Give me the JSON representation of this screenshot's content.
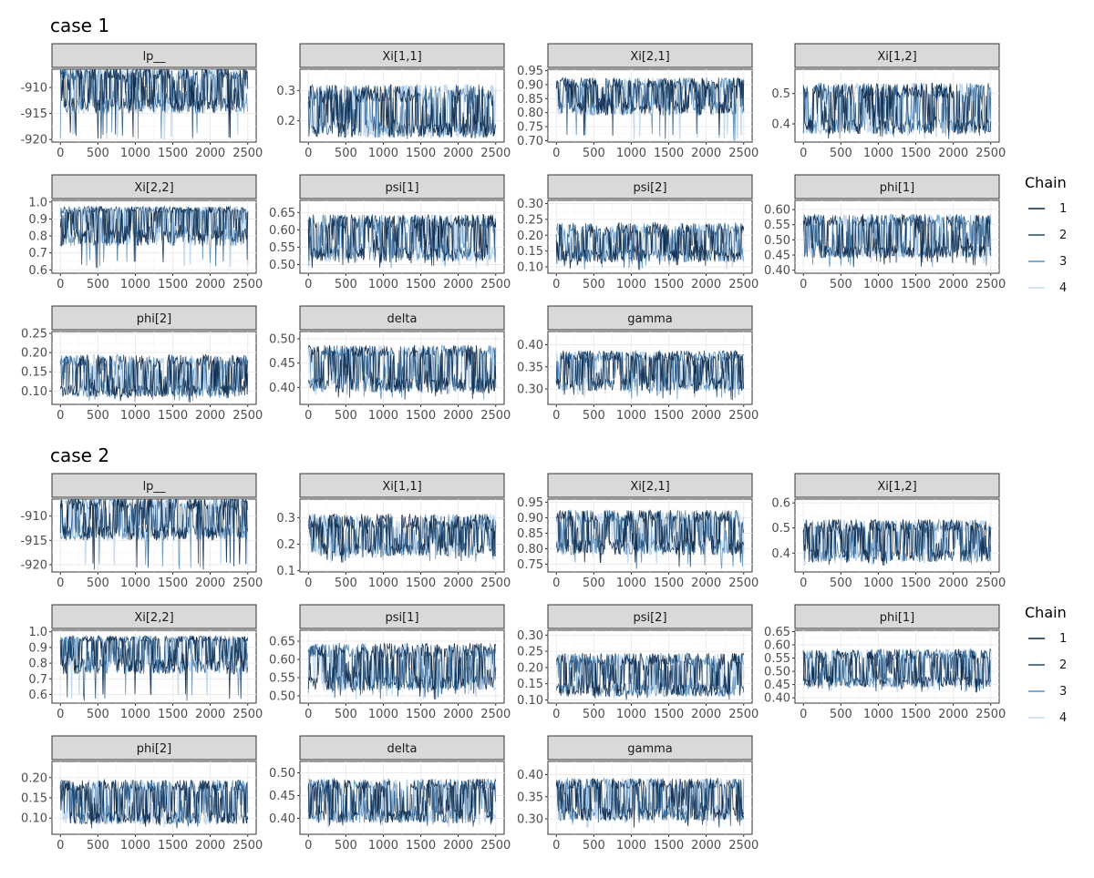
{
  "colors": {
    "chain_1": "#0b2545",
    "chain_2": "#1f4e79",
    "chain_3": "#5b8db8",
    "chain_4": "#c6dbef",
    "strip_fill": "#d9d9d9",
    "panel_border": "#333333",
    "grid": "#ebebeb"
  },
  "legend": {
    "title": "Chain",
    "placement": "right",
    "items": [
      "1",
      "2",
      "3",
      "4"
    ]
  },
  "chart_data": [
    {
      "type": "line",
      "title": "case 1",
      "x_range": [
        0,
        2500
      ],
      "x_ticks": [
        "0",
        "500",
        "1000",
        "1500",
        "2000",
        "2500"
      ],
      "grid": true,
      "series": [
        "1",
        "2",
        "3",
        "4"
      ],
      "facets": [
        {
          "label": "lp__",
          "ylim": [
            -920.5,
            -906.5
          ],
          "yticks": [
            -920,
            -915,
            -910
          ],
          "ytick_labels": [
            "-920",
            "-915",
            "-910"
          ],
          "upper": -907.2,
          "lower": -913.5,
          "band": 1.3,
          "spread": 1.5,
          "low": -920
        },
        {
          "label": "Xi[1,1]",
          "ylim": [
            0.13,
            0.37
          ],
          "yticks": [
            0.2,
            0.3
          ],
          "ytick_labels": [
            "0.2",
            "0.3"
          ],
          "upper": 0.29,
          "lower": 0.17,
          "band": 0.03,
          "spread": 0.025,
          "low": 0.14
        },
        {
          "label": "Xi[2,1]",
          "ylim": [
            0.695,
            0.955
          ],
          "yticks": [
            0.7,
            0.75,
            0.8,
            0.85,
            0.9,
            0.95
          ],
          "ytick_labels": [
            "0.70",
            "0.75",
            "0.80",
            "0.85",
            "0.90",
            "0.95"
          ],
          "upper": 0.905,
          "lower": 0.815,
          "band": 0.02,
          "spread": 0.025,
          "low": 0.7
        },
        {
          "label": "Xi[1,2]",
          "ylim": [
            0.34,
            0.58
          ],
          "yticks": [
            0.4,
            0.5
          ],
          "ytick_labels": [
            "0.4",
            "0.5"
          ],
          "upper": 0.51,
          "lower": 0.39,
          "band": 0.025,
          "spread": 0.025,
          "low": 0.35
        },
        {
          "label": "Xi[2,2]",
          "ylim": [
            0.58,
            1.01
          ],
          "yticks": [
            0.6,
            0.7,
            0.8,
            0.9,
            1.0
          ],
          "ytick_labels": [
            "0.6",
            "0.7",
            "0.8",
            "0.9",
            "1.0"
          ],
          "upper": 0.955,
          "lower": 0.79,
          "band": 0.02,
          "spread": 0.05,
          "low": 0.61
        },
        {
          "label": "psi[1]",
          "ylim": [
            0.475,
            0.685
          ],
          "yticks": [
            0.5,
            0.55,
            0.6,
            0.65
          ],
          "ytick_labels": [
            "0.50",
            "0.55",
            "0.60",
            "0.65"
          ],
          "upper": 0.625,
          "lower": 0.53,
          "band": 0.02,
          "spread": 0.02,
          "low": 0.49
        },
        {
          "label": "psi[2]",
          "ylim": [
            0.08,
            0.31
          ],
          "yticks": [
            0.1,
            0.15,
            0.2,
            0.25,
            0.3
          ],
          "ytick_labels": [
            "0.10",
            "0.15",
            "0.20",
            "0.25",
            "0.30"
          ],
          "upper": 0.22,
          "lower": 0.135,
          "band": 0.02,
          "spread": 0.02,
          "low": 0.09
        },
        {
          "label": "phi[1]",
          "ylim": [
            0.39,
            0.63
          ],
          "yticks": [
            0.4,
            0.45,
            0.5,
            0.55,
            0.6
          ],
          "ytick_labels": [
            "0.40",
            "0.45",
            "0.50",
            "0.55",
            "0.60"
          ],
          "upper": 0.565,
          "lower": 0.46,
          "band": 0.02,
          "spread": 0.02,
          "low": 0.41
        },
        {
          "label": "phi[2]",
          "ylim": [
            0.065,
            0.255
          ],
          "yticks": [
            0.1,
            0.15,
            0.2,
            0.25
          ],
          "ytick_labels": [
            "0.10",
            "0.15",
            "0.20",
            "0.25"
          ],
          "upper": 0.18,
          "lower": 0.1,
          "band": 0.015,
          "spread": 0.015,
          "low": 0.07
        },
        {
          "label": "delta",
          "ylim": [
            0.365,
            0.515
          ],
          "yticks": [
            0.4,
            0.45,
            0.5
          ],
          "ytick_labels": [
            "0.40",
            "0.45",
            "0.50"
          ],
          "upper": 0.475,
          "lower": 0.405,
          "band": 0.012,
          "spread": 0.015,
          "low": 0.375
        },
        {
          "label": "gamma",
          "ylim": [
            0.265,
            0.43
          ],
          "yticks": [
            0.3,
            0.35,
            0.4
          ],
          "ytick_labels": [
            "0.30",
            "0.35",
            "0.40"
          ],
          "upper": 0.375,
          "lower": 0.31,
          "band": 0.012,
          "spread": 0.015,
          "low": 0.275
        }
      ]
    },
    {
      "type": "line",
      "title": "case 2",
      "x_range": [
        0,
        2500
      ],
      "x_ticks": [
        "0",
        "500",
        "1000",
        "1500",
        "2000",
        "2500"
      ],
      "grid": true,
      "series": [
        "1",
        "2",
        "3",
        "4"
      ],
      "facets": [
        {
          "label": "lp__",
          "ylim": [
            -921.5,
            -906.5
          ],
          "yticks": [
            -920,
            -915,
            -910
          ],
          "ytick_labels": [
            "-920",
            "-915",
            "-910"
          ],
          "upper": -907.3,
          "lower": -913.5,
          "band": 1.3,
          "spread": 1.5,
          "low": -921
        },
        {
          "label": "Xi[1,1]",
          "ylim": [
            0.095,
            0.37
          ],
          "yticks": [
            0.1,
            0.2,
            0.3
          ],
          "ytick_labels": [
            "0.1",
            "0.2",
            "0.3"
          ],
          "upper": 0.285,
          "lower": 0.18,
          "band": 0.03,
          "spread": 0.025,
          "low": 0.13
        },
        {
          "label": "Xi[2,1]",
          "ylim": [
            0.725,
            0.96
          ],
          "yticks": [
            0.75,
            0.8,
            0.85,
            0.9,
            0.95
          ],
          "ytick_labels": [
            "0.75",
            "0.80",
            "0.85",
            "0.90",
            "0.95"
          ],
          "upper": 0.905,
          "lower": 0.805,
          "band": 0.02,
          "spread": 0.025,
          "low": 0.735
        },
        {
          "label": "Xi[1,2]",
          "ylim": [
            0.325,
            0.615
          ],
          "yticks": [
            0.4,
            0.5,
            0.6
          ],
          "ytick_labels": [
            "0.4",
            "0.5",
            "0.6"
          ],
          "upper": 0.51,
          "lower": 0.39,
          "band": 0.025,
          "spread": 0.025,
          "low": 0.35
        },
        {
          "label": "Xi[2,2]",
          "ylim": [
            0.545,
            1.01
          ],
          "yticks": [
            0.6,
            0.7,
            0.8,
            0.9,
            1.0
          ],
          "ytick_labels": [
            "0.6",
            "0.7",
            "0.8",
            "0.9",
            "1.0"
          ],
          "upper": 0.955,
          "lower": 0.78,
          "band": 0.02,
          "spread": 0.05,
          "low": 0.56
        },
        {
          "label": "psi[1]",
          "ylim": [
            0.48,
            0.68
          ],
          "yticks": [
            0.5,
            0.55,
            0.6,
            0.65
          ],
          "ytick_labels": [
            "0.50",
            "0.55",
            "0.60",
            "0.65"
          ],
          "upper": 0.625,
          "lower": 0.535,
          "band": 0.02,
          "spread": 0.02,
          "low": 0.49
        },
        {
          "label": "psi[2]",
          "ylim": [
            0.09,
            0.315
          ],
          "yticks": [
            0.1,
            0.15,
            0.2,
            0.25,
            0.3
          ],
          "ytick_labels": [
            "0.10",
            "0.15",
            "0.20",
            "0.25",
            "0.30"
          ],
          "upper": 0.225,
          "lower": 0.13,
          "band": 0.02,
          "spread": 0.02,
          "low": 0.1
        },
        {
          "label": "phi[1]",
          "ylim": [
            0.38,
            0.655
          ],
          "yticks": [
            0.4,
            0.45,
            0.5,
            0.55,
            0.6,
            0.65
          ],
          "ytick_labels": [
            "0.40",
            "0.45",
            "0.50",
            "0.55",
            "0.60",
            "0.65"
          ],
          "upper": 0.565,
          "lower": 0.46,
          "band": 0.02,
          "spread": 0.02,
          "low": 0.42
        },
        {
          "label": "phi[2]",
          "ylim": [
            0.06,
            0.24
          ],
          "yticks": [
            0.1,
            0.15,
            0.2
          ],
          "ytick_labels": [
            "0.10",
            "0.15",
            "0.20"
          ],
          "upper": 0.18,
          "lower": 0.1,
          "band": 0.015,
          "spread": 0.015,
          "low": 0.075
        },
        {
          "label": "delta",
          "ylim": [
            0.365,
            0.525
          ],
          "yticks": [
            0.4,
            0.45,
            0.5
          ],
          "ytick_labels": [
            "0.40",
            "0.45",
            "0.50"
          ],
          "upper": 0.475,
          "lower": 0.405,
          "band": 0.012,
          "spread": 0.015,
          "low": 0.38
        },
        {
          "label": "gamma",
          "ylim": [
            0.265,
            0.43
          ],
          "yticks": [
            0.3,
            0.35,
            0.4
          ],
          "ytick_labels": [
            "0.30",
            "0.35",
            "0.40"
          ],
          "upper": 0.38,
          "lower": 0.31,
          "band": 0.012,
          "spread": 0.015,
          "low": 0.28
        }
      ]
    }
  ]
}
